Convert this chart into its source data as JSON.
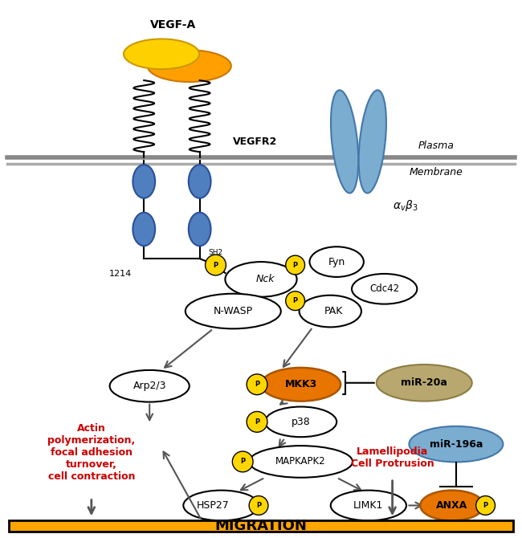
{
  "fig_width": 6.5,
  "fig_height": 6.7,
  "dpi": 100,
  "bg_color": "#ffffff",
  "vegfa_label": "VEGF-A",
  "vegfr2_label": "VEGFR2",
  "label_1214": "1214",
  "sh2_label": "SH2",
  "nck_label": "Nck",
  "fyn_label": "Fyn",
  "cdc42_label": "Cdc42",
  "nwasp_label": "N-WASP",
  "pak_label": "PAK",
  "arp23_label": "Arp2/3",
  "mkk3_label": "MKK3",
  "mir20a_label": "miR-20a",
  "p38_label": "p38",
  "mapkapk2_label": "MAPKAPK2",
  "hsp27_label": "HSP27",
  "limk1_label": "LIMK1",
  "anxa_label": "ANXA",
  "mir196a_label": "miR-196a",
  "actin_label": "Actin\npolymerization,\nfocal adhesion\nturnover,\ncell contraction",
  "lamellipodia_label": "Lamellipodia\nCell Protrusion",
  "migration_label": "MIGRATION",
  "yellow_color": "#FFD700",
  "orange_color": "#FFA500",
  "blue_receptor": "#4F7FBF",
  "blue_receptor_edge": "#2A509A",
  "tan_color": "#B8A870",
  "tan_edge": "#8B7D45",
  "sky_blue_color": "#7AADD0",
  "sky_blue_edge": "#4477AA",
  "red_color": "#CC0000",
  "migration_bg": "#FFA500",
  "avb3_integrin_color": "#7AADD0",
  "avb3_integrin_edge": "#4477AA"
}
